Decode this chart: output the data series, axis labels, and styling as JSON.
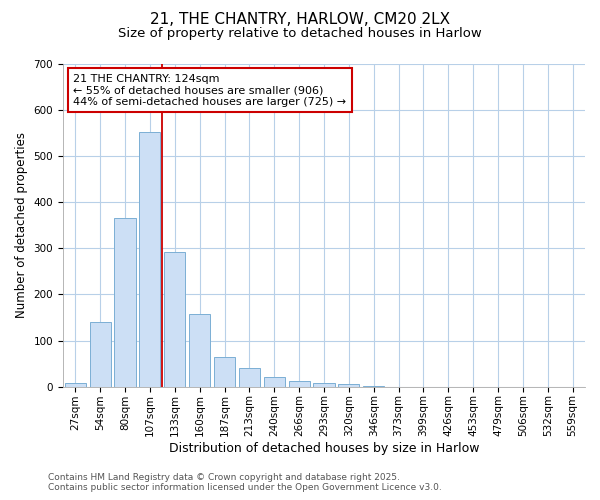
{
  "title_line1": "21, THE CHANTRY, HARLOW, CM20 2LX",
  "title_line2": "Size of property relative to detached houses in Harlow",
  "xlabel": "Distribution of detached houses by size in Harlow",
  "ylabel": "Number of detached properties",
  "categories": [
    "27sqm",
    "54sqm",
    "80sqm",
    "107sqm",
    "133sqm",
    "160sqm",
    "187sqm",
    "213sqm",
    "240sqm",
    "266sqm",
    "293sqm",
    "320sqm",
    "346sqm",
    "373sqm",
    "399sqm",
    "426sqm",
    "453sqm",
    "479sqm",
    "506sqm",
    "532sqm",
    "559sqm"
  ],
  "values": [
    8,
    140,
    365,
    553,
    293,
    158,
    65,
    40,
    22,
    13,
    8,
    5,
    2,
    0,
    0,
    0,
    0,
    0,
    0,
    0,
    0
  ],
  "bar_color": "#ccdff5",
  "bar_edge_color": "#7bafd4",
  "vline_x": 4.0,
  "vline_color": "#cc0000",
  "annotation_text": "21 THE CHANTRY: 124sqm\n← 55% of detached houses are smaller (906)\n44% of semi-detached houses are larger (725) →",
  "annotation_box_color": "white",
  "annotation_box_edge": "#cc0000",
  "ylim": [
    0,
    700
  ],
  "yticks": [
    0,
    100,
    200,
    300,
    400,
    500,
    600,
    700
  ],
  "grid_color": "#b8d0e8",
  "background_color": "#ffffff",
  "plot_bg_color": "#ffffff",
  "footer_line1": "Contains HM Land Registry data © Crown copyright and database right 2025.",
  "footer_line2": "Contains public sector information licensed under the Open Government Licence v3.0.",
  "title_fontsize": 11,
  "subtitle_fontsize": 9.5,
  "tick_fontsize": 7.5,
  "ylabel_fontsize": 8.5,
  "xlabel_fontsize": 9,
  "footer_fontsize": 6.5,
  "annot_fontsize": 8
}
